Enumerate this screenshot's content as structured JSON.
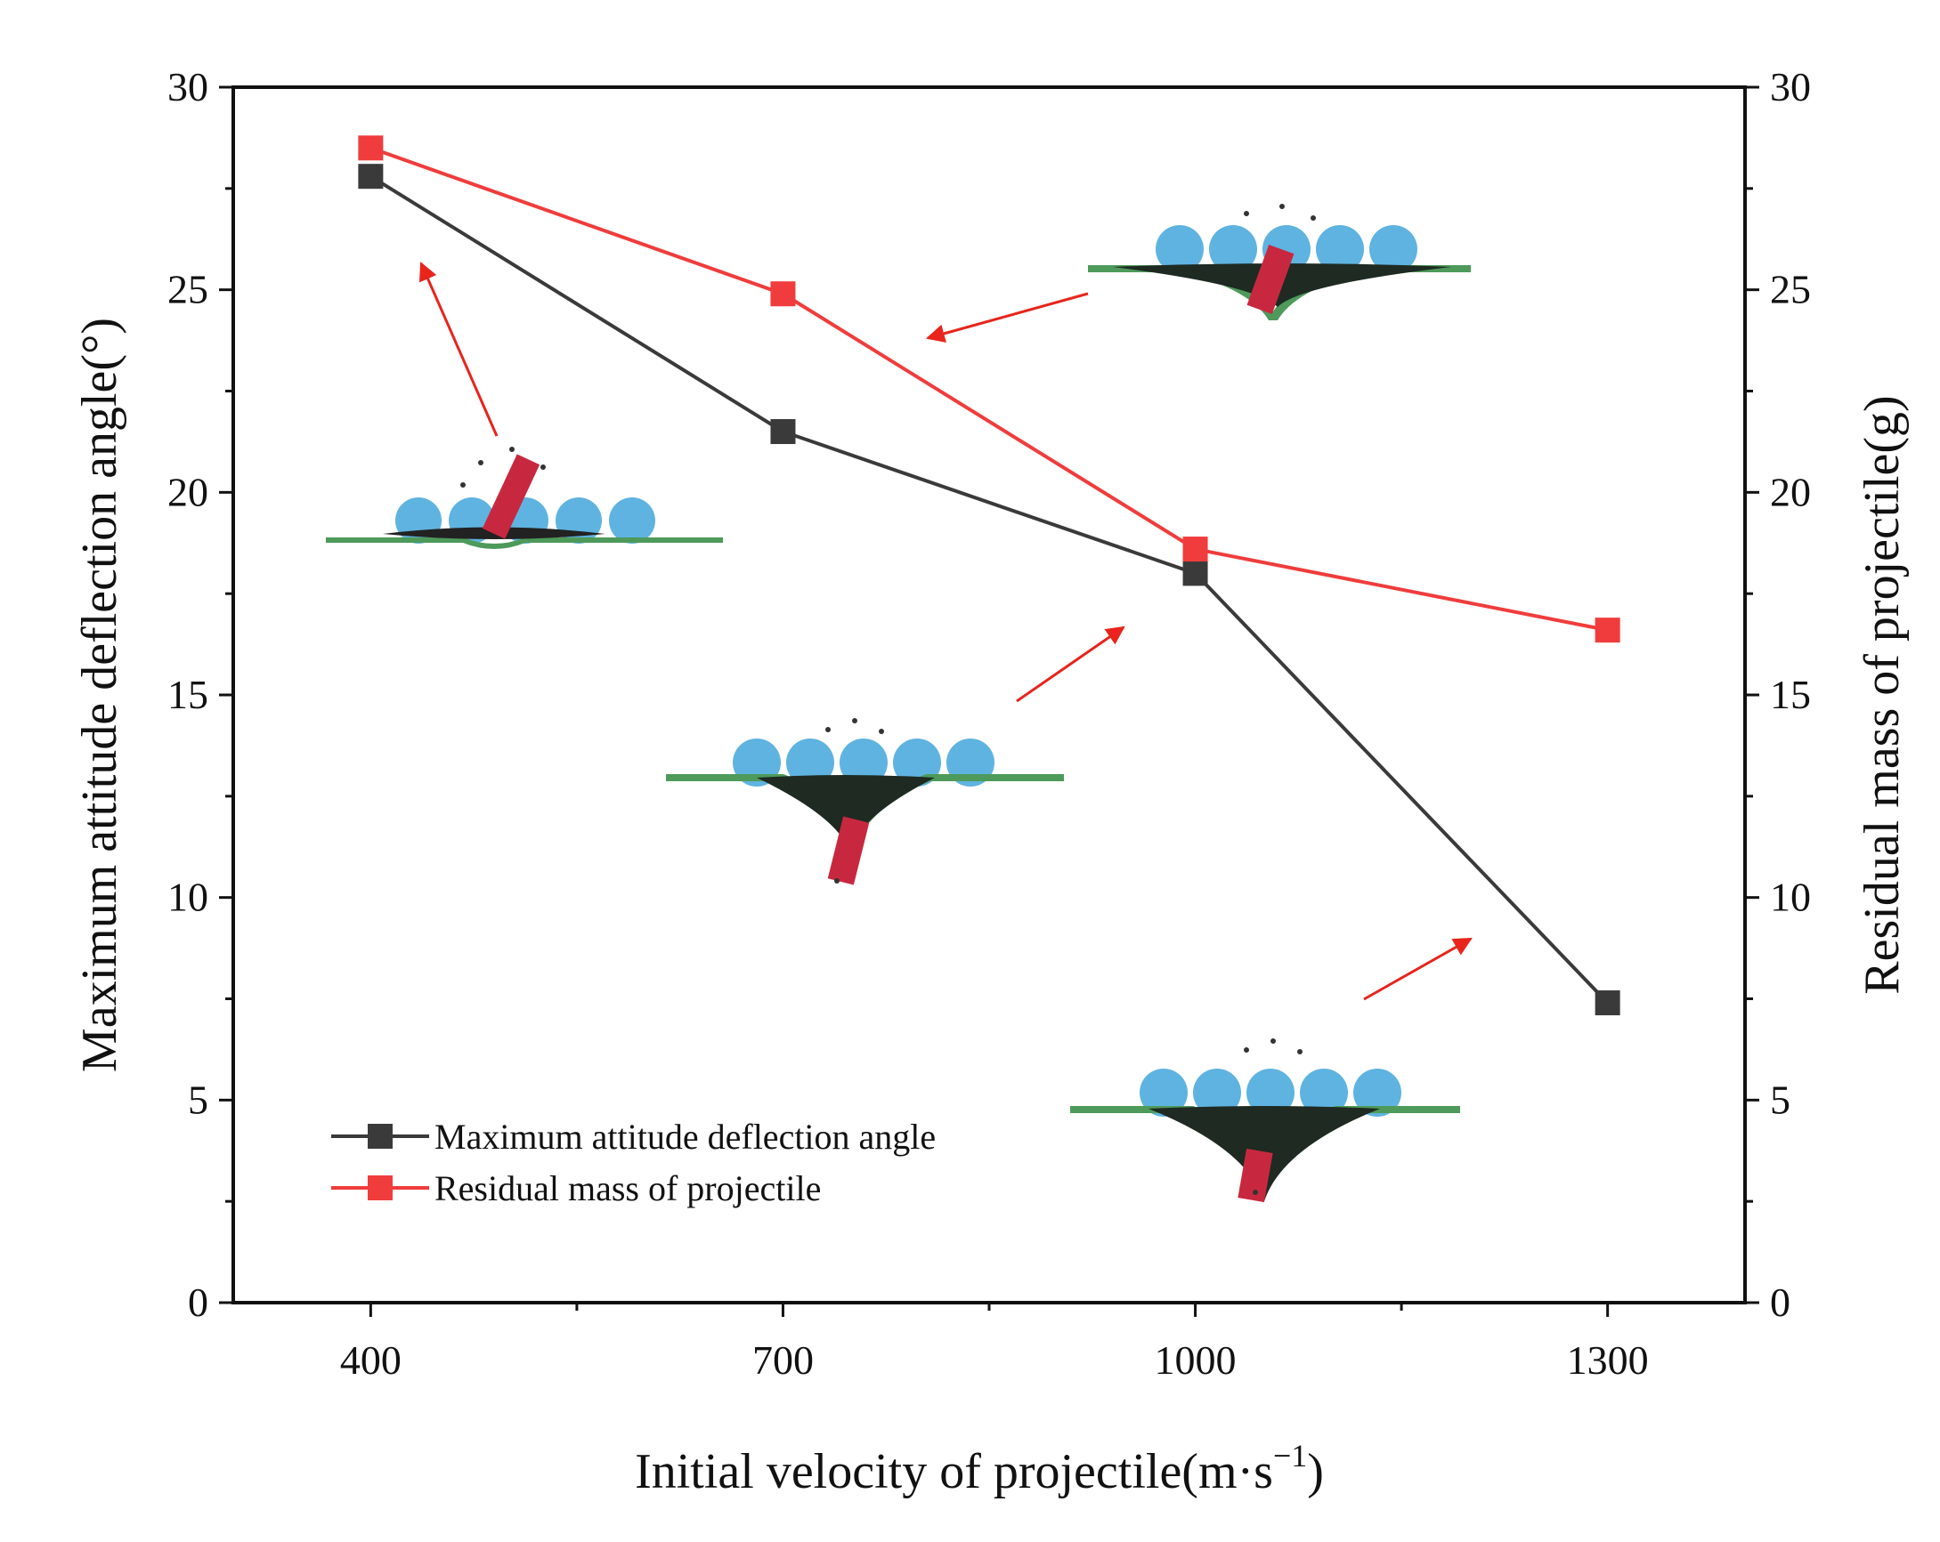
{
  "chart_data": {
    "type": "line",
    "title": "",
    "xlabel": "Initial velocity of projectile(m·s",
    "xlabel_superscript": "−1",
    "xlabel_suffix": ")",
    "ylabel_left": "Maximum attitude deflection angle(°)",
    "ylabel_right": "Residual mass of projectile(g)",
    "x": [
      400,
      700,
      1000,
      1300
    ],
    "x_tick_labels": [
      "400",
      "700",
      "1000",
      "1300"
    ],
    "xlim": [
      300,
      1400
    ],
    "ylim_left": [
      0,
      30
    ],
    "ylim_right": [
      0,
      30
    ],
    "y_tick_labels": [
      "0",
      "5",
      "10",
      "15",
      "20",
      "25",
      "30"
    ],
    "grid": false,
    "legend_position": "bottom-left",
    "series": [
      {
        "name": "Maximum attitude deflection angle",
        "axis": "left",
        "color": "#3a3a3a",
        "marker": "square",
        "values": [
          27.8,
          21.5,
          18.0,
          7.4
        ]
      },
      {
        "name": "Residual mass of projectile",
        "axis": "right",
        "color": "#f03c3c",
        "marker": "square",
        "values": [
          28.5,
          24.9,
          18.6,
          16.6
        ]
      }
    ],
    "annotations": [
      {
        "type": "inset-image",
        "x": 400,
        "description": "projectile penetration snapshot"
      },
      {
        "type": "inset-image",
        "x": 700,
        "description": "projectile penetration snapshot"
      },
      {
        "type": "inset-image",
        "x": 1000,
        "description": "projectile penetration snapshot"
      },
      {
        "type": "inset-image",
        "x": 1300,
        "description": "projectile penetration snapshot"
      }
    ]
  }
}
